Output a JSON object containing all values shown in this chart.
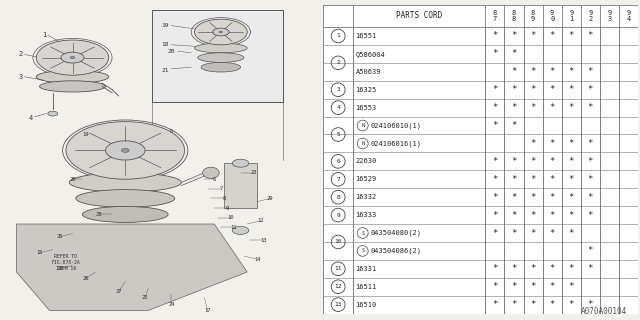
{
  "part_code": "A070A00104",
  "bg_color": "#f2f0eb",
  "table_bg": "#ffffff",
  "table_line_color": "#888888",
  "header_labels": [
    "PARTS CORD",
    "8\n7",
    "8\n8",
    "8\n9",
    "9\n0",
    "9\n1",
    "9\n2",
    "9\n3",
    "9\n4"
  ],
  "rows": [
    {
      "num": "1",
      "prefix": "",
      "part": "16551",
      "marks": [
        1,
        1,
        1,
        1,
        1,
        1,
        0,
        0
      ],
      "group_first": true
    },
    {
      "num": "2",
      "prefix": "",
      "part": "Q586004",
      "marks": [
        1,
        1,
        0,
        0,
        0,
        0,
        0,
        0
      ],
      "group_first": true
    },
    {
      "num": "2",
      "prefix": "",
      "part": "A50639",
      "marks": [
        0,
        1,
        1,
        1,
        1,
        1,
        0,
        0
      ],
      "group_first": false
    },
    {
      "num": "3",
      "prefix": "",
      "part": "16325",
      "marks": [
        1,
        1,
        1,
        1,
        1,
        1,
        0,
        0
      ],
      "group_first": true
    },
    {
      "num": "4",
      "prefix": "",
      "part": "16553",
      "marks": [
        1,
        1,
        1,
        1,
        1,
        1,
        0,
        0
      ],
      "group_first": true
    },
    {
      "num": "5",
      "prefix": "N",
      "part": "024106010(1)",
      "marks": [
        1,
        1,
        0,
        0,
        0,
        0,
        0,
        0
      ],
      "group_first": true
    },
    {
      "num": "5",
      "prefix": "N",
      "part": "024106016(1)",
      "marks": [
        0,
        0,
        1,
        1,
        1,
        1,
        0,
        0
      ],
      "group_first": false
    },
    {
      "num": "6",
      "prefix": "",
      "part": "22630",
      "marks": [
        1,
        1,
        1,
        1,
        1,
        1,
        0,
        0
      ],
      "group_first": true
    },
    {
      "num": "7",
      "prefix": "",
      "part": "16529",
      "marks": [
        1,
        1,
        1,
        1,
        1,
        1,
        0,
        0
      ],
      "group_first": true
    },
    {
      "num": "8",
      "prefix": "",
      "part": "16332",
      "marks": [
        1,
        1,
        1,
        1,
        1,
        1,
        0,
        0
      ],
      "group_first": true
    },
    {
      "num": "9",
      "prefix": "",
      "part": "16333",
      "marks": [
        1,
        1,
        1,
        1,
        1,
        1,
        0,
        0
      ],
      "group_first": true
    },
    {
      "num": "10",
      "prefix": "S",
      "part": "043504080(2)",
      "marks": [
        1,
        1,
        1,
        1,
        1,
        0,
        0,
        0
      ],
      "group_first": true
    },
    {
      "num": "10",
      "prefix": "S",
      "part": "043504086(2)",
      "marks": [
        0,
        0,
        0,
        0,
        0,
        1,
        0,
        0
      ],
      "group_first": false
    },
    {
      "num": "11",
      "prefix": "",
      "part": "16331",
      "marks": [
        1,
        1,
        1,
        1,
        1,
        1,
        0,
        0
      ],
      "group_first": true
    },
    {
      "num": "12",
      "prefix": "",
      "part": "16511",
      "marks": [
        1,
        1,
        1,
        1,
        1,
        0,
        0,
        0
      ],
      "group_first": true
    },
    {
      "num": "13",
      "prefix": "",
      "part": "16510",
      "marks": [
        1,
        1,
        1,
        1,
        1,
        1,
        0,
        0
      ],
      "group_first": true
    }
  ]
}
